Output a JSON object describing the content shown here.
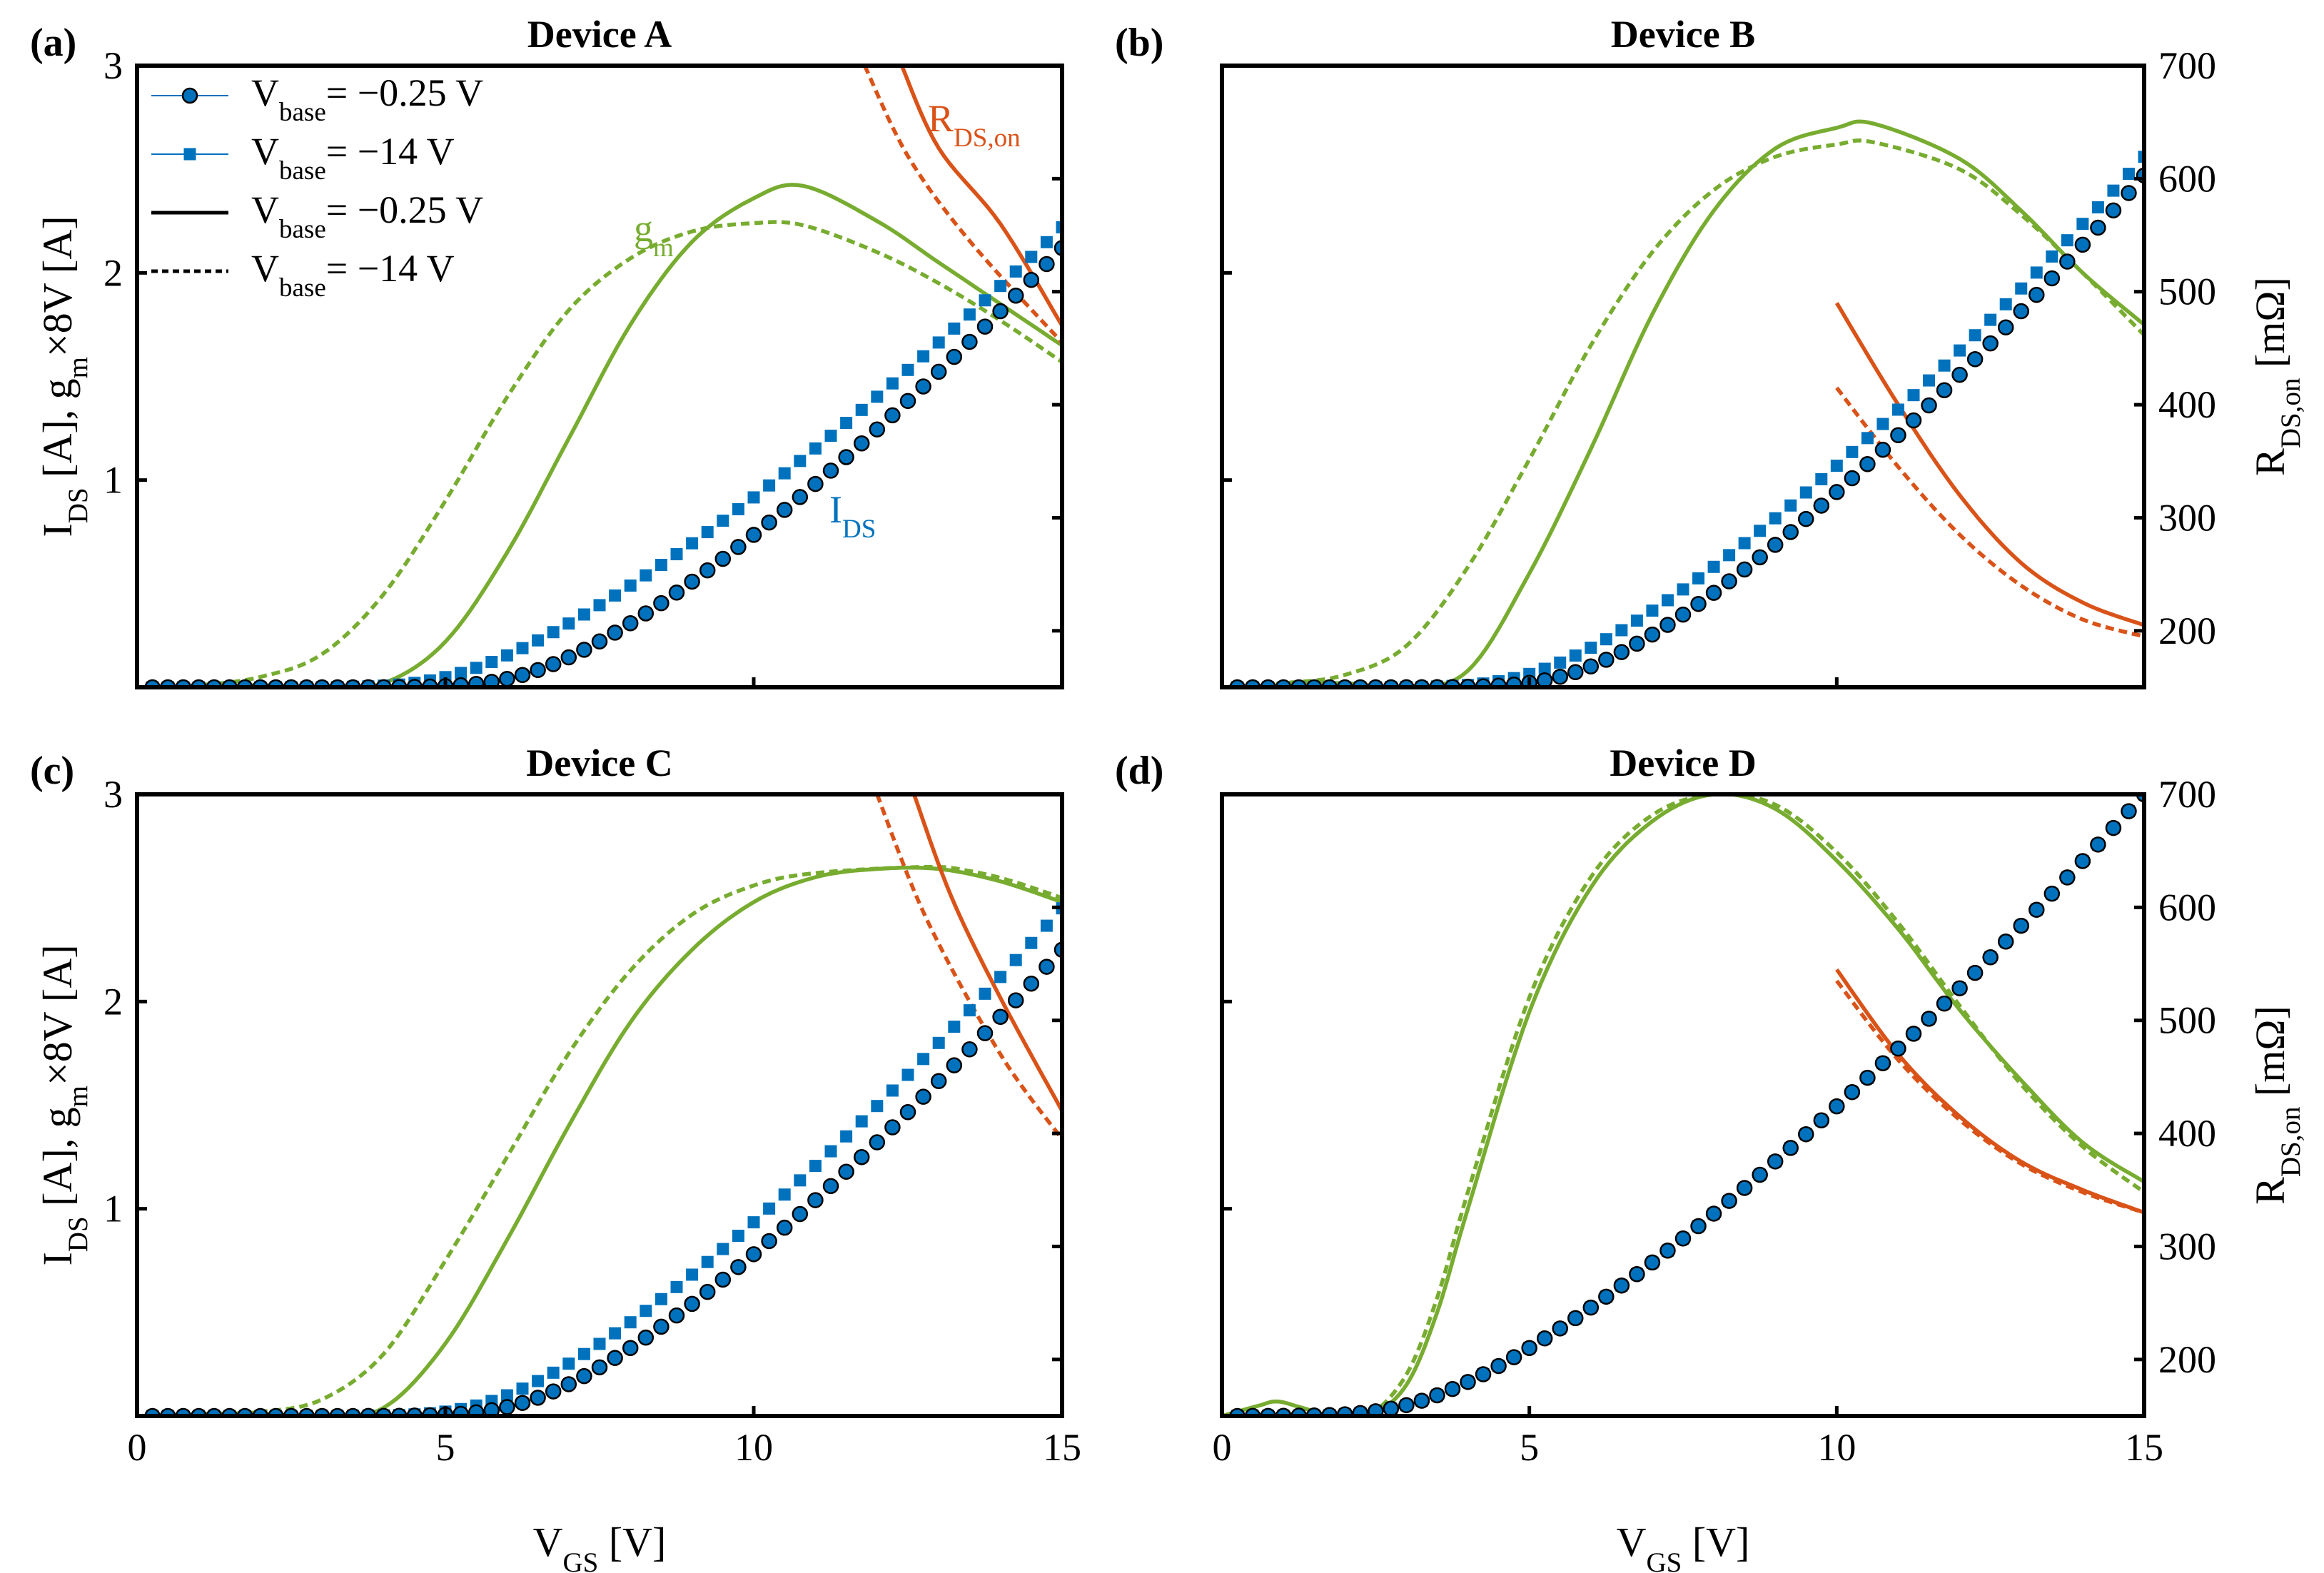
{
  "colors": {
    "ids": "#0072BD",
    "gm": "#77AC30",
    "rds": "#D95319",
    "axis": "#000000"
  },
  "legend": {
    "entries": [
      {
        "prefix": "V",
        "sub": "base",
        "value": "= −0.25 V",
        "style": "marker-circle"
      },
      {
        "prefix": "V",
        "sub": "base",
        "value": "= −14 V",
        "style": "marker-square"
      },
      {
        "prefix": "V",
        "sub": "base",
        "value": "= −0.25 V",
        "style": "solid-line"
      },
      {
        "prefix": "V",
        "sub": "base",
        "value": "= −14 V",
        "style": "dashed-line"
      }
    ]
  },
  "series_labels": {
    "gm": {
      "main": "g",
      "sub": "m"
    },
    "ids": {
      "main": "I",
      "sub": "DS"
    },
    "rds": {
      "main": "R",
      "sub": "DS,on"
    }
  },
  "axes": {
    "x_label": {
      "main": "V",
      "sub": "GS",
      "rest": " [V]"
    },
    "y_left_label": {
      "p1": "I",
      "s1": "DS",
      "p2": " [A], g",
      "s2": "m",
      "p3": "×8V [A]"
    },
    "y_right_label": {
      "main": "R",
      "sub": "DS,on",
      "rest": "  [mΩ]"
    },
    "x_ticks": [
      "0",
      "5",
      "10",
      "15"
    ],
    "y_left_ticks": [
      "1",
      "2",
      "3"
    ],
    "y_right_ticks": [
      "200",
      "300",
      "400",
      "500",
      "600",
      "700"
    ]
  },
  "chart_data": [
    {
      "type": "line",
      "panel": "(a)",
      "title": "Device A",
      "xlabel": "VGS [V]",
      "ylabel": "IDS [A], gm×8V [A]",
      "xlim": [
        0,
        15
      ],
      "ylim": [
        0,
        3
      ],
      "y2label": "RDS,on [mΩ]",
      "y2lim": [
        150,
        700
      ],
      "ids_params": {
        "vth_025": 5.8,
        "vth_14": 4.6,
        "ids_end_025": 2.12,
        "ids_end_14": 2.22
      },
      "series": [
        {
          "name": "gm, Vbase = -0.25 V",
          "quantity": "gm",
          "style": "solid",
          "x": [
            0,
            1,
            2,
            3,
            4,
            5,
            6,
            7,
            8,
            9,
            10,
            10.8,
            12,
            13,
            14,
            15
          ],
          "y": [
            0,
            0,
            0.01,
            0.0,
            0.02,
            0.22,
            0.65,
            1.2,
            1.75,
            2.15,
            2.36,
            2.42,
            2.25,
            2.05,
            1.85,
            1.65
          ]
        },
        {
          "name": "gm, Vbase = -14 V",
          "quantity": "gm",
          "style": "dashed",
          "x": [
            0,
            1,
            2,
            3,
            4,
            5,
            6,
            7,
            8,
            9,
            10,
            10.8,
            12,
            13,
            14,
            15
          ],
          "y": [
            0,
            0.01,
            0.05,
            0.16,
            0.45,
            0.9,
            1.4,
            1.82,
            2.07,
            2.2,
            2.24,
            2.23,
            2.1,
            1.95,
            1.77,
            1.57
          ]
        },
        {
          "name": "RDS,on, Vbase = -0.25 V",
          "quantity": "rds",
          "style": "solid",
          "axis": "right",
          "x": [
            12.4,
            13,
            14,
            15
          ],
          "y": [
            700,
            627,
            560,
            470
          ]
        },
        {
          "name": "RDS,on, Vbase = -14 V",
          "quantity": "rds",
          "style": "dashed",
          "x": [
            11.8,
            12.5,
            13.5,
            15
          ],
          "axis": "right",
          "y": [
            700,
            620,
            545,
            455
          ]
        }
      ]
    },
    {
      "type": "line",
      "panel": "(b)",
      "title": "Device B",
      "xlabel": "VGS [V]",
      "ylabel": "IDS [A], gm×8V [A]",
      "xlim": [
        0,
        15
      ],
      "ylim": [
        0,
        3
      ],
      "y2label": "RDS,on [mΩ]",
      "y2lim": [
        150,
        700
      ],
      "ids_params": {
        "vth_025": 5.2,
        "vth_14": 4.5,
        "ids_end_025": 2.47,
        "ids_end_14": 2.56
      },
      "series": [
        {
          "name": "gm, Vbase = -0.25 V",
          "quantity": "gm",
          "style": "solid",
          "x": [
            0,
            1,
            2,
            3,
            4,
            5,
            6,
            7,
            8,
            9,
            10,
            10.6,
            12,
            13,
            14,
            15
          ],
          "y": [
            0,
            0.01,
            0.02,
            0.0,
            0.08,
            0.55,
            1.15,
            1.8,
            2.3,
            2.6,
            2.7,
            2.72,
            2.55,
            2.3,
            2.0,
            1.75
          ]
        },
        {
          "name": "gm, Vbase = -14 V",
          "quantity": "gm",
          "style": "dashed",
          "x": [
            0,
            1,
            2,
            3,
            4,
            5,
            6,
            7,
            8,
            9,
            10,
            10.6,
            12,
            13,
            14,
            15
          ],
          "y": [
            0,
            0.02,
            0.06,
            0.2,
            0.58,
            1.1,
            1.65,
            2.1,
            2.4,
            2.56,
            2.62,
            2.63,
            2.5,
            2.28,
            2.0,
            1.7
          ]
        },
        {
          "name": "RDS,on, Vbase = -0.25 V",
          "quantity": "rds",
          "style": "solid",
          "axis": "right",
          "x": [
            10,
            11,
            12,
            13,
            14,
            15
          ],
          "y": [
            490,
            400,
            320,
            260,
            225,
            205
          ]
        },
        {
          "name": "RDS,on, Vbase = -14 V",
          "quantity": "rds",
          "style": "dashed",
          "axis": "right",
          "x": [
            10,
            11,
            12,
            13,
            14,
            15
          ],
          "y": [
            415,
            345,
            285,
            240,
            210,
            195
          ]
        }
      ]
    },
    {
      "type": "line",
      "panel": "(c)",
      "title": "Device C",
      "xlabel": "VGS [V]",
      "ylabel": "IDS [A], gm×8V [A]",
      "xlim": [
        0,
        15
      ],
      "ylim": [
        0,
        3
      ],
      "y2label": "RDS,on [mΩ]",
      "y2lim": [
        150,
        700
      ],
      "ids_params": {
        "vth_025": 5.8,
        "vth_14": 5.2,
        "ids_end_025": 2.25,
        "ids_end_14": 2.45
      },
      "series": [
        {
          "name": "gm, Vbase = -0.25 V",
          "quantity": "gm",
          "style": "solid",
          "x": [
            0,
            1,
            2,
            3,
            4,
            5,
            6,
            7,
            8,
            9,
            10,
            11,
            12,
            13,
            14,
            15
          ],
          "y": [
            0,
            0,
            0.01,
            0.0,
            0.04,
            0.35,
            0.85,
            1.4,
            1.9,
            2.25,
            2.48,
            2.6,
            2.64,
            2.64,
            2.58,
            2.48
          ]
        },
        {
          "name": "gm, Vbase = -14 V",
          "quantity": "gm",
          "style": "dashed",
          "x": [
            0,
            1,
            2,
            3,
            4,
            5,
            6,
            7,
            8,
            9,
            10,
            11,
            12.8,
            13.5,
            14.2,
            15
          ],
          "y": [
            0,
            0.01,
            0.02,
            0.08,
            0.3,
            0.75,
            1.25,
            1.75,
            2.15,
            2.42,
            2.56,
            2.62,
            2.65,
            2.63,
            2.58,
            2.5
          ]
        },
        {
          "name": "RDS,on, Vbase = -0.25 V",
          "quantity": "rds",
          "style": "solid",
          "axis": "right",
          "x": [
            12.6,
            13.2,
            14,
            15
          ],
          "y": [
            700,
            610,
            520,
            420
          ]
        },
        {
          "name": "RDS,on, Vbase = -14 V",
          "quantity": "rds",
          "style": "dashed",
          "axis": "right",
          "x": [
            12,
            12.8,
            14,
            15
          ],
          "y": [
            700,
            590,
            470,
            395
          ]
        }
      ]
    },
    {
      "type": "line",
      "panel": "(d)",
      "title": "Device D",
      "xlabel": "VGS [V]",
      "ylabel": "IDS [A], gm×8V [A]",
      "xlim": [
        0,
        15
      ],
      "ylim": [
        0,
        3
      ],
      "y2label": "RDS,on [mΩ]",
      "y2lim": [
        150,
        700
      ],
      "ids_params": {
        "vth_025": 2.6,
        "vth_14": 2.6,
        "ids_end_025": 3.0,
        "ids_end_14": 3.0
      },
      "series": [
        {
          "name": "gm, Vbase = -0.25 V",
          "quantity": "gm",
          "style": "solid",
          "x": [
            0,
            0.6,
            0.9,
            1.3,
            1.8,
            2.4,
            3,
            3.5,
            4,
            5,
            6,
            7,
            8,
            9,
            10,
            11,
            12,
            13,
            14,
            15
          ],
          "y": [
            0,
            0.05,
            0.07,
            0.04,
            0,
            0,
            0.15,
            0.5,
            1.0,
            1.95,
            2.55,
            2.87,
            3.0,
            2.93,
            2.68,
            2.35,
            1.96,
            1.62,
            1.32,
            1.13
          ]
        },
        {
          "name": "gm, Vbase = -14 V",
          "quantity": "gm",
          "style": "dashed",
          "x": [
            0,
            1,
            2,
            2.4,
            3,
            3.5,
            4,
            5,
            6,
            7,
            8,
            9,
            10,
            11,
            12,
            13,
            14,
            15
          ],
          "y": [
            0,
            0.01,
            0.0,
            0,
            0.2,
            0.57,
            1.08,
            2.02,
            2.6,
            2.9,
            3.0,
            2.95,
            2.72,
            2.38,
            1.98,
            1.6,
            1.3,
            1.08
          ]
        },
        {
          "name": "RDS,on, Vbase = -0.25 V",
          "quantity": "rds",
          "style": "solid",
          "axis": "right",
          "x": [
            10,
            11,
            12,
            13,
            14,
            15
          ],
          "y": [
            545,
            470,
            415,
            375,
            350,
            330
          ]
        },
        {
          "name": "RDS,on, Vbase = -14 V",
          "quantity": "rds",
          "style": "dashed",
          "axis": "right",
          "x": [
            10,
            11,
            12,
            13,
            14,
            15
          ],
          "y": [
            535,
            465,
            412,
            373,
            348,
            330
          ]
        }
      ]
    }
  ]
}
